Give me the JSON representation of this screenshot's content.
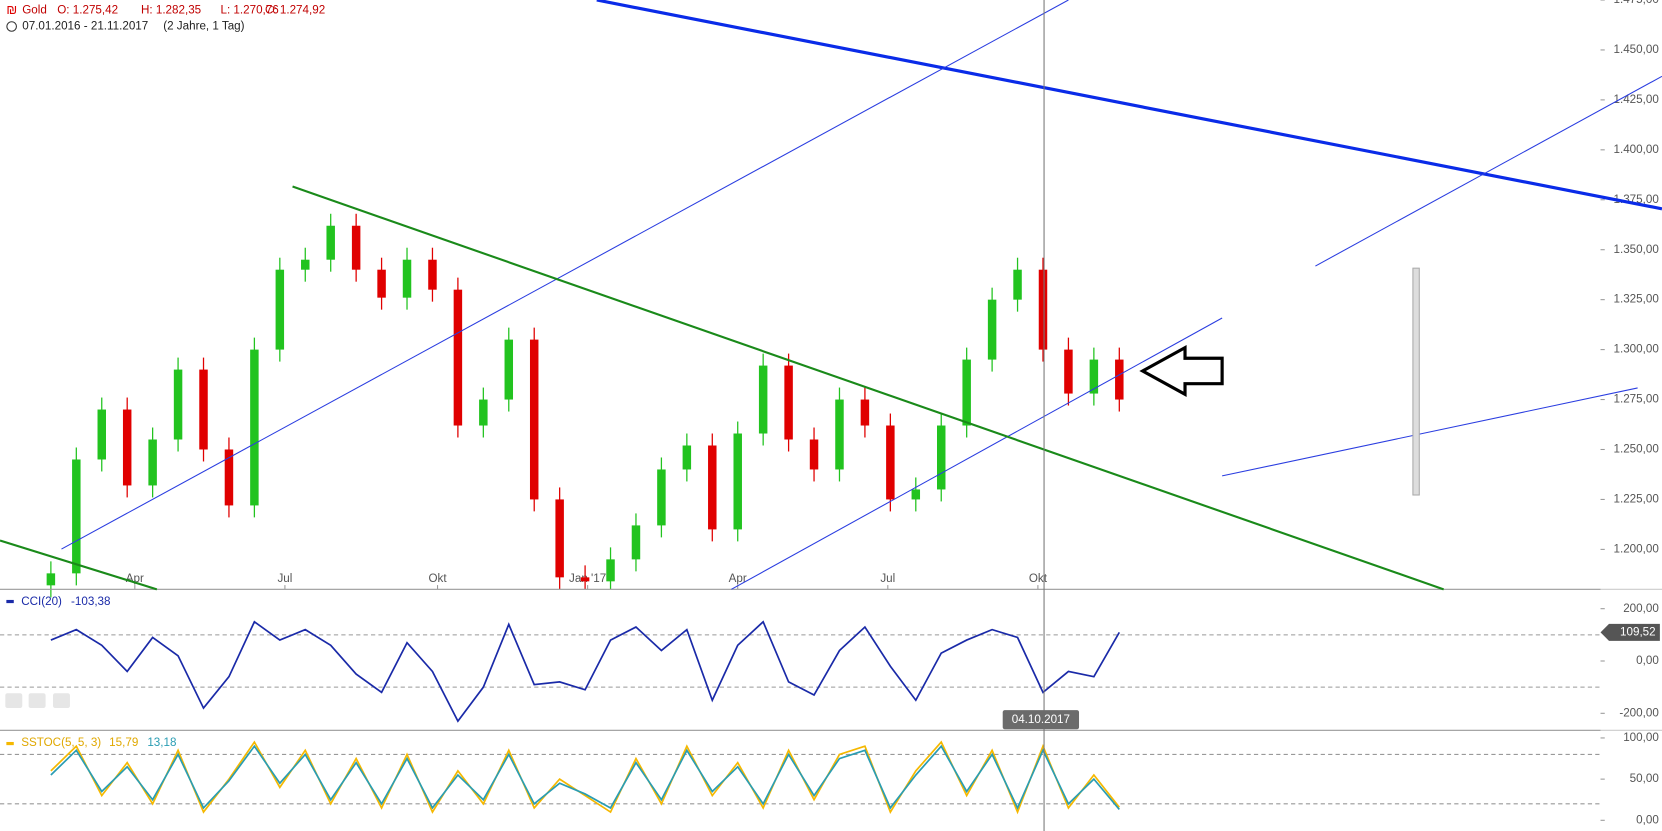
{
  "header": {
    "symbol": "Gold",
    "open": "O: 1.275,42",
    "high": "H: 1.282,35",
    "low": "L: 1.270,76",
    "close": "C: 1.274,92",
    "range": "07.01.2016 - 21.11.2017",
    "period": "(2 Jahre, 1 Tag)",
    "crosshair_date": "04.10.2017"
  },
  "chart_data": [
    {
      "type": "candlestick",
      "open": [
        1182,
        1188,
        1245,
        1270,
        1232,
        1255,
        1290,
        1250,
        1222,
        1300,
        1340,
        1345,
        1362,
        1340,
        1326,
        1345,
        1330,
        1262,
        1275,
        1305,
        1225,
        1186,
        1184,
        1195,
        1212,
        1240,
        1252,
        1210,
        1258,
        1292,
        1255,
        1240,
        1275,
        1262,
        1225,
        1230,
        1262,
        1295,
        1325,
        1340,
        1300,
        1278,
        1295
      ],
      "high": [
        1194,
        1251,
        1276,
        1276,
        1261,
        1296,
        1296,
        1256,
        1306,
        1346,
        1351,
        1368,
        1368,
        1346,
        1351,
        1351,
        1336,
        1281,
        1311,
        1311,
        1231,
        1192,
        1201,
        1218,
        1246,
        1258,
        1258,
        1264,
        1298,
        1298,
        1261,
        1281,
        1281,
        1268,
        1236,
        1268,
        1301,
        1331,
        1346,
        1346,
        1306,
        1301,
        1301
      ],
      "low": [
        1176,
        1182,
        1239,
        1226,
        1226,
        1249,
        1244,
        1216,
        1216,
        1294,
        1334,
        1339,
        1334,
        1320,
        1320,
        1324,
        1256,
        1256,
        1269,
        1219,
        1180,
        1180,
        1180,
        1189,
        1206,
        1234,
        1204,
        1204,
        1252,
        1249,
        1234,
        1234,
        1256,
        1219,
        1219,
        1224,
        1256,
        1289,
        1319,
        1294,
        1272,
        1272,
        1269
      ],
      "close": [
        1188,
        1245,
        1270,
        1232,
        1255,
        1290,
        1250,
        1222,
        1300,
        1340,
        1345,
        1362,
        1340,
        1326,
        1345,
        1330,
        1262,
        1275,
        1305,
        1225,
        1186,
        1184,
        1195,
        1212,
        1240,
        1252,
        1210,
        1258,
        1292,
        1255,
        1240,
        1275,
        1262,
        1225,
        1230,
        1262,
        1295,
        1325,
        1340,
        1300,
        1278,
        1295,
        1275
      ],
      "up_color": "#22c31f",
      "down_color": "#e00000",
      "ylim": [
        1180,
        1475
      ],
      "yticks": [
        {
          "value": 1200,
          "label": "1.200,00"
        },
        {
          "value": 1225,
          "label": "1.225,00"
        },
        {
          "value": 1250,
          "label": "1.250,00"
        },
        {
          "value": 1275,
          "label": "1.275,00"
        },
        {
          "value": 1300,
          "label": "1.300,00"
        },
        {
          "value": 1325,
          "label": "1.325,00"
        },
        {
          "value": 1350,
          "label": "1.350,00"
        },
        {
          "value": 1375,
          "label": "1.375,00"
        },
        {
          "value": 1400,
          "label": "1.400,00"
        },
        {
          "value": 1425,
          "label": "1.425,00"
        },
        {
          "value": 1450,
          "label": "1.450,00"
        },
        {
          "value": 1475,
          "label": "1.475,00"
        }
      ],
      "xticks": [
        {
          "value": 3.3,
          "label": "Apr"
        },
        {
          "value": 9.2,
          "label": "Jul"
        },
        {
          "value": 15.2,
          "label": "Okt"
        },
        {
          "value": 21.1,
          "label": "Jan '17"
        },
        {
          "value": 27.0,
          "label": "Apr"
        },
        {
          "value": 32.9,
          "label": "Jul"
        },
        {
          "value": 38.8,
          "label": "Okt"
        }
      ]
    },
    {
      "type": "line",
      "value_label": "-103,38",
      "last_value_label": "109,52",
      "series": [
        {
          "name": "CCI(20)",
          "color": "#1a2aa8",
          "values": [
            80,
            120,
            60,
            -40,
            90,
            20,
            -180,
            -60,
            150,
            80,
            120,
            60,
            -50,
            -120,
            70,
            -40,
            -230,
            -100,
            140,
            -90,
            -80,
            -110,
            80,
            130,
            40,
            120,
            -150,
            60,
            150,
            -80,
            -130,
            40,
            130,
            -20,
            -150,
            30,
            80,
            120,
            90,
            -120,
            -40,
            -60,
            109.52
          ]
        }
      ],
      "ylim": [
        -265,
        270
      ],
      "yticks": [
        {
          "value": 200,
          "label": "200,00"
        },
        {
          "value": 0,
          "label": "0,00"
        },
        {
          "value": -200,
          "label": "-200,00"
        }
      ],
      "ref_lines": [
        100,
        -100
      ]
    },
    {
      "type": "line",
      "series": [
        {
          "name": "SSTOC(5, 5, 3)",
          "color": "#f5b800",
          "value_label": "15,79",
          "values": [
            60,
            90,
            30,
            70,
            20,
            85,
            10,
            50,
            95,
            40,
            85,
            20,
            75,
            15,
            80,
            10,
            60,
            20,
            85,
            15,
            50,
            30,
            10,
            75,
            20,
            90,
            30,
            70,
            15,
            85,
            25,
            80,
            90,
            10,
            60,
            95,
            30,
            85,
            10,
            90,
            15,
            55,
            15.79
          ]
        },
        {
          "color": "#2a9db3",
          "value_label": "13,18",
          "values": [
            55,
            85,
            35,
            65,
            25,
            80,
            15,
            48,
            90,
            45,
            80,
            25,
            70,
            20,
            75,
            15,
            55,
            25,
            80,
            20,
            45,
            32,
            15,
            70,
            25,
            85,
            35,
            65,
            20,
            80,
            30,
            75,
            85,
            15,
            55,
            90,
            35,
            80,
            15,
            85,
            20,
            50,
            13.18
          ]
        }
      ],
      "ylim": [
        -13,
        108
      ],
      "yticks": [
        {
          "value": 100,
          "label": "100,00"
        },
        {
          "value": 50,
          "label": "50,00"
        },
        {
          "value": 0,
          "label": "0,00"
        }
      ],
      "ref_lines": [
        80,
        20
      ]
    }
  ]
}
